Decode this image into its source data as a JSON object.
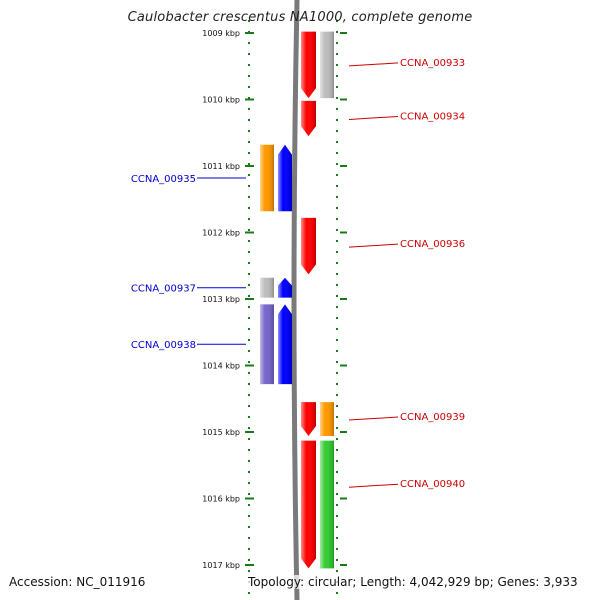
{
  "title": "Caulobacter crescentus NA1000, complete genome",
  "footer": {
    "accession": "Accession: NC_011916",
    "info": "Topology: circular; Length: 4,042,929 bp; Genes: 3,933"
  },
  "colors": {
    "forward_label": "#cc0000",
    "reverse_label": "#0000cc",
    "ruler": "#1a7a1a",
    "backbone": "#7a7a7a",
    "forward_cds": "#ff0000",
    "reverse_cds": "#0000ff",
    "grey_feature": "#bdbdbd",
    "orange_feature": "#ff9900",
    "purple_feature": "#7766cc",
    "green_feature": "#33cc33"
  },
  "ruler": {
    "ticks": [
      {
        "label": "1009 kbp",
        "kbp": 1009
      },
      {
        "label": "1010 kbp",
        "kbp": 1010
      },
      {
        "label": "1011 kbp",
        "kbp": 1011
      },
      {
        "label": "1012 kbp",
        "kbp": 1012
      },
      {
        "label": "1013 kbp",
        "kbp": 1013
      },
      {
        "label": "1014 kbp",
        "kbp": 1014
      },
      {
        "label": "1015 kbp",
        "kbp": 1015
      },
      {
        "label": "1016 kbp",
        "kbp": 1016
      },
      {
        "label": "1017 kbp",
        "kbp": 1017
      }
    ]
  },
  "genes": [
    {
      "name": "CCNA_00933",
      "strand": "forward",
      "start_kbp": 1008.98,
      "end_kbp": 1009.98
    },
    {
      "name": "CCNA_00934",
      "strand": "forward",
      "start_kbp": 1010.02,
      "end_kbp": 1010.55
    },
    {
      "name": "CCNA_00935",
      "strand": "reverse",
      "start_kbp": 1010.68,
      "end_kbp": 1011.68
    },
    {
      "name": "CCNA_00936",
      "strand": "forward",
      "start_kbp": 1011.78,
      "end_kbp": 1012.63
    },
    {
      "name": "CCNA_00937",
      "strand": "reverse",
      "start_kbp": 1012.68,
      "end_kbp": 1012.98
    },
    {
      "name": "CCNA_00938",
      "strand": "reverse",
      "start_kbp": 1013.08,
      "end_kbp": 1014.28
    },
    {
      "name": "CCNA_00939",
      "strand": "forward",
      "start_kbp": 1014.55,
      "end_kbp": 1015.06
    },
    {
      "name": "CCNA_00940",
      "strand": "forward",
      "start_kbp": 1015.13,
      "end_kbp": 1017.05
    }
  ],
  "feature_tracks": [
    {
      "type": "cds",
      "strand": "forward",
      "color": "forward_cds",
      "start_kbp": 1008.98,
      "end_kbp": 1009.98
    },
    {
      "type": "gene",
      "strand": "forward",
      "color": "grey_feature",
      "start_kbp": 1008.98,
      "end_kbp": 1009.98
    },
    {
      "type": "cds",
      "strand": "forward",
      "color": "forward_cds",
      "start_kbp": 1010.02,
      "end_kbp": 1010.55
    },
    {
      "type": "cds",
      "strand": "reverse",
      "color": "reverse_cds",
      "start_kbp": 1010.68,
      "end_kbp": 1011.68
    },
    {
      "type": "gene",
      "strand": "reverse",
      "color": "orange_feature",
      "start_kbp": 1010.68,
      "end_kbp": 1011.68
    },
    {
      "type": "cds",
      "strand": "forward",
      "color": "forward_cds",
      "start_kbp": 1011.78,
      "end_kbp": 1012.63
    },
    {
      "type": "cds",
      "strand": "reverse",
      "color": "reverse_cds",
      "start_kbp": 1012.68,
      "end_kbp": 1012.98
    },
    {
      "type": "gene",
      "strand": "reverse",
      "color": "grey_feature",
      "start_kbp": 1012.68,
      "end_kbp": 1012.98
    },
    {
      "type": "cds",
      "strand": "reverse",
      "color": "reverse_cds",
      "start_kbp": 1013.08,
      "end_kbp": 1014.28
    },
    {
      "type": "gene",
      "strand": "reverse",
      "color": "purple_feature",
      "start_kbp": 1013.08,
      "end_kbp": 1014.28
    },
    {
      "type": "cds",
      "strand": "forward",
      "color": "forward_cds",
      "start_kbp": 1014.55,
      "end_kbp": 1015.06
    },
    {
      "type": "gene",
      "strand": "forward",
      "color": "orange_feature",
      "start_kbp": 1014.55,
      "end_kbp": 1015.06
    },
    {
      "type": "cds",
      "strand": "forward",
      "color": "forward_cds",
      "start_kbp": 1015.13,
      "end_kbp": 1017.05
    },
    {
      "type": "gene",
      "strand": "forward",
      "color": "green_feature",
      "start_kbp": 1015.13,
      "end_kbp": 1017.05
    }
  ]
}
